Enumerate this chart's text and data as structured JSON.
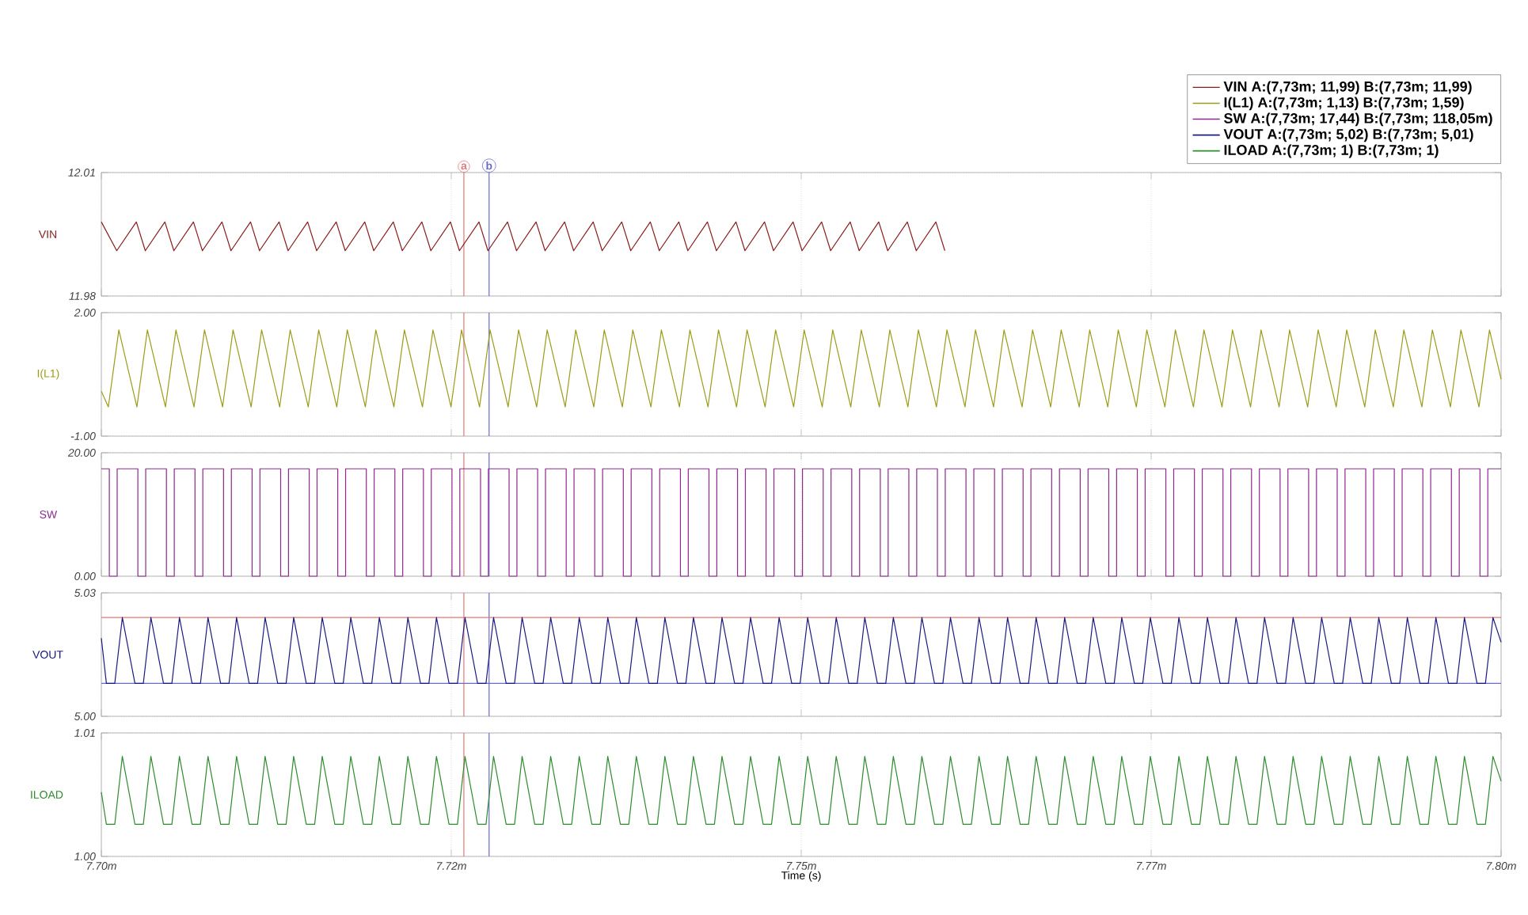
{
  "chart_data": [
    {
      "type": "line",
      "ylabel": "VIN",
      "legend": "top right",
      "grid": true,
      "tick_labels": "y",
      "xlim": [
        7.7,
        7.8
      ],
      "xticks": [
        7.7,
        7.725,
        7.75,
        7.775,
        7.8
      ],
      "ylim": [
        11.98,
        12.01
      ],
      "yticks": [
        11.98,
        12.01
      ],
      "ref_lines": [
        {
          "axis": "x",
          "value": 7.7259,
          "label": "a",
          "color": "#e07878"
        },
        {
          "axis": "x",
          "value": 7.7277,
          "label": "b",
          "color": "#6a6ad0"
        }
      ],
      "x": [
        7.7,
        7.7011,
        7.7025,
        7.70314,
        7.70454,
        7.70518,
        7.70658,
        7.70722,
        7.70862,
        7.70926,
        7.71066,
        7.7113,
        7.7127,
        7.71334,
        7.71474,
        7.71538,
        7.71678,
        7.71742,
        7.71882,
        7.71946,
        7.72086,
        7.7215,
        7.7229,
        7.72354,
        7.72494,
        7.72558,
        7.72698,
        7.72762,
        7.72902,
        7.72966,
        7.73106,
        7.7317,
        7.7331,
        7.73374,
        7.73514,
        7.73578,
        7.73718,
        7.73782,
        7.73922,
        7.73986,
        7.74126,
        7.7419,
        7.7433,
        7.74394,
        7.74534,
        7.74598,
        7.74738,
        7.74802,
        7.74942,
        7.75006,
        7.75146,
        7.7521,
        7.7535,
        7.75414,
        7.75554,
        7.75618,
        7.75758,
        7.75822,
        7.75962,
        7.76026
      ],
      "series": [
        {
          "name": "VIN   A:(7,73m; 11,99) B:(7,73m; 11,99)",
          "color": "#8b1c1c",
          "values": [
            11.998,
            11.991,
            11.998,
            11.991,
            11.998,
            11.991,
            11.998,
            11.991,
            11.998,
            11.991,
            11.998,
            11.991,
            11.998,
            11.991,
            11.998,
            11.991,
            11.998,
            11.991,
            11.998,
            11.991,
            11.998,
            11.991,
            11.998,
            11.991,
            11.998,
            11.991,
            11.998,
            11.991,
            11.998,
            11.991,
            11.998,
            11.991,
            11.998,
            11.991,
            11.998,
            11.991,
            11.998,
            11.991,
            11.998,
            11.991,
            11.998,
            11.991,
            11.998,
            11.991,
            11.998,
            11.991,
            11.998,
            11.991,
            11.998,
            11.991,
            11.998,
            11.991,
            11.998,
            11.991,
            11.998,
            11.991,
            11.998,
            11.991,
            11.998,
            11.991
          ]
        }
      ]
    },
    {
      "type": "line",
      "ylabel": "I(L1)",
      "grid": true,
      "tick_labels": "y",
      "xlim": [
        7.7,
        7.8
      ],
      "xticks": [
        7.7,
        7.725,
        7.75,
        7.775,
        7.8
      ],
      "ylim": [
        -1,
        2
      ],
      "yticks": [
        {
          "value": -1,
          "label": "-1.00"
        },
        {
          "value": 2,
          "label": "2.00"
        }
      ],
      "ref_lines": [
        {
          "axis": "x",
          "value": 7.7259,
          "color": "#e07878"
        },
        {
          "axis": "x",
          "value": 7.7277,
          "color": "#6a6ad0"
        }
      ],
      "x": [
        7.7,
        7.7005,
        7.70125,
        7.70254,
        7.70329,
        7.70458,
        7.70533,
        7.70662,
        7.70737,
        7.70866,
        7.70941,
        7.7107,
        7.71145,
        7.71274,
        7.71349,
        7.71478,
        7.71553,
        7.71682,
        7.71757,
        7.71886,
        7.71961,
        7.7209,
        7.72165,
        7.72294,
        7.72369,
        7.72498,
        7.72573,
        7.72702,
        7.72777,
        7.72906,
        7.72981,
        7.7311,
        7.73185,
        7.73314,
        7.73389,
        7.73518,
        7.73593,
        7.73722,
        7.73797,
        7.73926,
        7.74001,
        7.7413,
        7.74205,
        7.74334,
        7.74409,
        7.74538,
        7.74613,
        7.74742,
        7.74817,
        7.74946,
        7.75021,
        7.7515,
        7.75225,
        7.75354,
        7.75429,
        7.75558,
        7.75633,
        7.75762,
        7.75837,
        7.75966,
        7.76041,
        7.7617,
        7.76245,
        7.76374,
        7.76449,
        7.76578,
        7.76653,
        7.76782,
        7.76857,
        7.76986,
        7.77061,
        7.7719,
        7.77265,
        7.77394,
        7.77469,
        7.77598,
        7.77673,
        7.77802,
        7.77877,
        7.78006,
        7.78081,
        7.7821,
        7.78285,
        7.78414,
        7.78489,
        7.78618,
        7.78693,
        7.78822,
        7.78897,
        7.79026,
        7.79101,
        7.7923,
        7.79305,
        7.79434,
        7.79509,
        7.79638,
        7.79713,
        7.79842,
        7.79917,
        7.8
      ],
      "series": [
        {
          "name": "I(L1)   A:(7,73m; 1,13) B:(7,73m; 1,59)",
          "color": "#9c9c1a",
          "values": [
            0.09,
            -0.29,
            1.58,
            -0.29,
            1.58,
            -0.29,
            1.58,
            -0.29,
            1.58,
            -0.29,
            1.58,
            -0.29,
            1.58,
            -0.29,
            1.58,
            -0.29,
            1.58,
            -0.29,
            1.58,
            -0.29,
            1.58,
            -0.29,
            1.58,
            -0.29,
            1.58,
            -0.29,
            1.58,
            -0.29,
            1.58,
            -0.29,
            1.58,
            -0.29,
            1.58,
            -0.29,
            1.58,
            -0.29,
            1.58,
            -0.29,
            1.58,
            -0.29,
            1.58,
            -0.29,
            1.58,
            -0.29,
            1.58,
            -0.29,
            1.58,
            -0.29,
            1.58,
            -0.29,
            1.58,
            -0.29,
            1.58,
            -0.29,
            1.58,
            -0.29,
            1.58,
            -0.29,
            1.58,
            -0.29,
            1.58,
            -0.29,
            1.58,
            -0.29,
            1.58,
            -0.29,
            1.58,
            -0.29,
            1.58,
            -0.29,
            1.58,
            -0.29,
            1.58,
            -0.29,
            1.58,
            -0.29,
            1.58,
            -0.29,
            1.58,
            -0.29,
            1.58,
            -0.29,
            1.58,
            -0.29,
            1.58,
            -0.29,
            1.58,
            -0.29,
            1.58,
            -0.29,
            1.58,
            -0.29,
            1.58,
            -0.29,
            1.58,
            -0.29,
            1.58,
            -0.29,
            1.58,
            0.38
          ]
        }
      ]
    },
    {
      "type": "step",
      "ylabel": "SW",
      "grid": true,
      "tick_labels": "y",
      "xlim": [
        7.7,
        7.8
      ],
      "xticks": [
        7.7,
        7.725,
        7.75,
        7.775,
        7.8
      ],
      "ylim": [
        0,
        20
      ],
      "yticks": [
        {
          "value": 0,
          "label": "0.00"
        },
        {
          "value": 20,
          "label": "20.00"
        }
      ],
      "ref_lines": [
        {
          "axis": "x",
          "value": 7.7259,
          "color": "#e07878"
        },
        {
          "axis": "x",
          "value": 7.7277,
          "color": "#6a6ad0"
        }
      ],
      "x": [
        7.7,
        7.70057,
        7.70113,
        7.70261,
        7.70317,
        7.70465,
        7.70521,
        7.70669,
        7.70725,
        7.70873,
        7.70929,
        7.71077,
        7.71133,
        7.71281,
        7.71337,
        7.71485,
        7.71541,
        7.71689,
        7.71745,
        7.71893,
        7.71949,
        7.72097,
        7.72153,
        7.72301,
        7.72357,
        7.72505,
        7.72561,
        7.72709,
        7.72765,
        7.72913,
        7.72969,
        7.73117,
        7.73173,
        7.73321,
        7.73377,
        7.73525,
        7.73581,
        7.73729,
        7.73785,
        7.73933,
        7.73989,
        7.74137,
        7.74193,
        7.74341,
        7.74397,
        7.74545,
        7.74601,
        7.74749,
        7.74805,
        7.74953,
        7.75009,
        7.75157,
        7.75213,
        7.75361,
        7.75417,
        7.75565,
        7.75621,
        7.75769,
        7.75825,
        7.75973,
        7.76029,
        7.76177,
        7.76233,
        7.76381,
        7.76437,
        7.76585,
        7.76641,
        7.76789,
        7.76845,
        7.76993,
        7.77049,
        7.77197,
        7.77253,
        7.77401,
        7.77457,
        7.77605,
        7.77661,
        7.77809,
        7.77865,
        7.78013,
        7.78069,
        7.78217,
        7.78273,
        7.78421,
        7.78477,
        7.78625,
        7.78681,
        7.78829,
        7.78885,
        7.79033,
        7.79089,
        7.79237,
        7.79293,
        7.79441,
        7.79497,
        7.79645,
        7.79701,
        7.79849,
        7.79905,
        7.8
      ],
      "series": [
        {
          "name": "SW   A:(7,73m; 17,44) B:(7,73m; 118,05m)",
          "color": "#8e2a8e",
          "values": [
            17.4,
            0,
            17.4,
            0,
            17.4,
            0,
            17.4,
            0,
            17.4,
            0,
            17.4,
            0,
            17.4,
            0,
            17.4,
            0,
            17.4,
            0,
            17.4,
            0,
            17.4,
            0,
            17.4,
            0,
            17.4,
            0,
            17.4,
            0,
            17.4,
            0,
            17.4,
            0,
            17.4,
            0,
            17.4,
            0,
            17.4,
            0,
            17.4,
            0,
            17.4,
            0,
            17.4,
            0,
            17.4,
            0,
            17.4,
            0,
            17.4,
            0,
            17.4,
            0,
            17.4,
            0,
            17.4,
            0,
            17.4,
            0,
            17.4,
            0,
            17.4,
            0,
            17.4,
            0,
            17.4,
            0,
            17.4,
            0,
            17.4,
            0,
            17.4,
            0,
            17.4,
            0,
            17.4,
            0,
            17.4,
            0,
            17.4,
            0,
            17.4,
            0,
            17.4,
            0,
            17.4,
            0,
            17.4,
            0,
            17.4,
            0,
            17.4,
            0,
            17.4,
            0,
            17.4,
            0,
            17.4,
            0,
            17.4,
            17.4
          ]
        }
      ]
    },
    {
      "type": "line",
      "ylabel": "VOUT",
      "grid": true,
      "tick_labels": "y",
      "xlim": [
        7.7,
        7.8
      ],
      "xticks": [
        7.7,
        7.725,
        7.75,
        7.775,
        7.8
      ],
      "ylim": [
        5,
        5.03
      ],
      "yticks": [
        {
          "value": 5,
          "label": "5.00"
        },
        5.03
      ],
      "ref_lines": [
        {
          "axis": "x",
          "value": 7.7259,
          "color": "#e07878"
        },
        {
          "axis": "x",
          "value": 7.7277,
          "color": "#6a6ad0"
        },
        {
          "axis": "y",
          "value": 5.024,
          "color": "#e07878"
        },
        {
          "axis": "y",
          "value": 5.008,
          "color": "#6a6ad0"
        }
      ],
      "x": [
        7.7,
        7.70036,
        7.70096,
        7.7015,
        7.7024,
        7.703,
        7.70354,
        7.70444,
        7.70504,
        7.70558,
        7.70648,
        7.70708,
        7.70762,
        7.70852,
        7.70912,
        7.70966,
        7.71056,
        7.71116,
        7.7117,
        7.7126,
        7.7132,
        7.71374,
        7.71464,
        7.71524,
        7.71578,
        7.71668,
        7.71728,
        7.71782,
        7.71872,
        7.71932,
        7.71986,
        7.72076,
        7.72136,
        7.7219,
        7.7228,
        7.7234,
        7.72394,
        7.72484,
        7.72544,
        7.72598,
        7.72688,
        7.72748,
        7.72802,
        7.72892,
        7.72952,
        7.73006,
        7.73096,
        7.73156,
        7.7321,
        7.733,
        7.7336,
        7.73414,
        7.73504,
        7.73564,
        7.73618,
        7.73708,
        7.73768,
        7.73822,
        7.73912,
        7.73972,
        7.74026,
        7.74116,
        7.74176,
        7.7423,
        7.7432,
        7.7438,
        7.74434,
        7.74524,
        7.74584,
        7.74638,
        7.74728,
        7.74788,
        7.74842,
        7.74932,
        7.74992,
        7.75046,
        7.75136,
        7.75196,
        7.7525,
        7.7534,
        7.754,
        7.75454,
        7.75544,
        7.75604,
        7.75658,
        7.75748,
        7.75808,
        7.75862,
        7.75952,
        7.76012,
        7.76066,
        7.76156,
        7.76216,
        7.7627,
        7.7636,
        7.7642,
        7.76474,
        7.76564,
        7.76624,
        7.76678,
        7.76768,
        7.76828,
        7.76882,
        7.76972,
        7.77032,
        7.77086,
        7.77176,
        7.77236,
        7.7729,
        7.7738,
        7.7744,
        7.77494,
        7.77584,
        7.77644,
        7.77698,
        7.77788,
        7.77848,
        7.77902,
        7.77992,
        7.78052,
        7.78106,
        7.78196,
        7.78256,
        7.7831,
        7.784,
        7.7846,
        7.78514,
        7.78604,
        7.78664,
        7.78718,
        7.78808,
        7.78868,
        7.78922,
        7.79012,
        7.79072,
        7.79126,
        7.79216,
        7.79276,
        7.7933,
        7.7942,
        7.7948,
        7.79534,
        7.79624,
        7.79684,
        7.79738,
        7.79828,
        7.79888,
        7.79942,
        7.8
      ],
      "series": [
        {
          "name": "VOUT   A:(7,73m; 5,02) B:(7,73m; 5,01)",
          "color": "#1c1c80",
          "values": [
            5.019,
            5.008,
            5.008,
            5.024,
            5.008,
            5.008,
            5.024,
            5.008,
            5.008,
            5.024,
            5.008,
            5.008,
            5.024,
            5.008,
            5.008,
            5.024,
            5.008,
            5.008,
            5.024,
            5.008,
            5.008,
            5.024,
            5.008,
            5.008,
            5.024,
            5.008,
            5.008,
            5.024,
            5.008,
            5.008,
            5.024,
            5.008,
            5.008,
            5.024,
            5.008,
            5.008,
            5.024,
            5.008,
            5.008,
            5.024,
            5.008,
            5.008,
            5.024,
            5.008,
            5.008,
            5.024,
            5.008,
            5.008,
            5.024,
            5.008,
            5.008,
            5.024,
            5.008,
            5.008,
            5.024,
            5.008,
            5.008,
            5.024,
            5.008,
            5.008,
            5.024,
            5.008,
            5.008,
            5.024,
            5.008,
            5.008,
            5.024,
            5.008,
            5.008,
            5.024,
            5.008,
            5.008,
            5.024,
            5.008,
            5.008,
            5.024,
            5.008,
            5.008,
            5.024,
            5.008,
            5.008,
            5.024,
            5.008,
            5.008,
            5.024,
            5.008,
            5.008,
            5.024,
            5.008,
            5.008,
            5.024,
            5.008,
            5.008,
            5.024,
            5.008,
            5.008,
            5.024,
            5.008,
            5.008,
            5.024,
            5.008,
            5.008,
            5.024,
            5.008,
            5.008,
            5.024,
            5.008,
            5.008,
            5.024,
            5.008,
            5.008,
            5.024,
            5.008,
            5.008,
            5.024,
            5.008,
            5.008,
            5.024,
            5.008,
            5.008,
            5.024,
            5.008,
            5.008,
            5.024,
            5.008,
            5.008,
            5.024,
            5.008,
            5.008,
            5.024,
            5.008,
            5.008,
            5.024,
            5.008,
            5.008,
            5.024,
            5.008,
            5.008,
            5.024,
            5.008,
            5.008,
            5.024,
            5.008,
            5.008,
            5.024,
            5.008,
            5.008,
            5.024,
            5.018
          ]
        }
      ]
    },
    {
      "type": "line",
      "ylabel": "ILOAD",
      "xlabel": "Time (s)",
      "grid": true,
      "xlim": [
        7.7,
        7.8
      ],
      "xticks": [
        {
          "value": 7.7,
          "label": "7.70m"
        },
        {
          "value": 7.725,
          "label": "7.72m"
        },
        {
          "value": 7.75,
          "label": "7.75m"
        },
        {
          "value": 7.775,
          "label": "7.77m"
        },
        {
          "value": 7.8,
          "label": "7.80m"
        }
      ],
      "ylim": [
        1,
        1.01
      ],
      "yticks": [
        {
          "value": 1,
          "label": "1.00"
        },
        1.01
      ],
      "ref_lines": [
        {
          "axis": "x",
          "value": 7.7259,
          "color": "#e07878"
        },
        {
          "axis": "x",
          "value": 7.7277,
          "color": "#6a6ad0"
        }
      ],
      "x": [
        7.7,
        7.70036,
        7.70096,
        7.7015,
        7.7024,
        7.703,
        7.70354,
        7.70444,
        7.70504,
        7.70558,
        7.70648,
        7.70708,
        7.70762,
        7.70852,
        7.70912,
        7.70966,
        7.71056,
        7.71116,
        7.7117,
        7.7126,
        7.7132,
        7.71374,
        7.71464,
        7.71524,
        7.71578,
        7.71668,
        7.71728,
        7.71782,
        7.71872,
        7.71932,
        7.71986,
        7.72076,
        7.72136,
        7.7219,
        7.7228,
        7.7234,
        7.72394,
        7.72484,
        7.72544,
        7.72598,
        7.72688,
        7.72748,
        7.72802,
        7.72892,
        7.72952,
        7.73006,
        7.73096,
        7.73156,
        7.7321,
        7.733,
        7.7336,
        7.73414,
        7.73504,
        7.73564,
        7.73618,
        7.73708,
        7.73768,
        7.73822,
        7.73912,
        7.73972,
        7.74026,
        7.74116,
        7.74176,
        7.7423,
        7.7432,
        7.7438,
        7.74434,
        7.74524,
        7.74584,
        7.74638,
        7.74728,
        7.74788,
        7.74842,
        7.74932,
        7.74992,
        7.75046,
        7.75136,
        7.75196,
        7.7525,
        7.7534,
        7.754,
        7.75454,
        7.75544,
        7.75604,
        7.75658,
        7.75748,
        7.75808,
        7.75862,
        7.75952,
        7.76012,
        7.76066,
        7.76156,
        7.76216,
        7.7627,
        7.7636,
        7.7642,
        7.76474,
        7.76564,
        7.76624,
        7.76678,
        7.76768,
        7.76828,
        7.76882,
        7.76972,
        7.77032,
        7.77086,
        7.77176,
        7.77236,
        7.7729,
        7.7738,
        7.7744,
        7.77494,
        7.77584,
        7.77644,
        7.77698,
        7.77788,
        7.77848,
        7.77902,
        7.77992,
        7.78052,
        7.78106,
        7.78196,
        7.78256,
        7.7831,
        7.784,
        7.7846,
        7.78514,
        7.78604,
        7.78664,
        7.78718,
        7.78808,
        7.78868,
        7.78922,
        7.79012,
        7.79072,
        7.79126,
        7.79216,
        7.79276,
        7.7933,
        7.7942,
        7.7948,
        7.79534,
        7.79624,
        7.79684,
        7.79738,
        7.79828,
        7.79888,
        7.79942,
        7.8
      ],
      "series": [
        {
          "name": "ILOAD   A:(7,73m; 1) B:(7,73m; 1)",
          "color": "#2e8b2e",
          "values": [
            1.0052,
            1.0026,
            1.0026,
            1.0081,
            1.0026,
            1.0026,
            1.0081,
            1.0026,
            1.0026,
            1.0081,
            1.0026,
            1.0026,
            1.0081,
            1.0026,
            1.0026,
            1.0081,
            1.0026,
            1.0026,
            1.0081,
            1.0026,
            1.0026,
            1.0081,
            1.0026,
            1.0026,
            1.0081,
            1.0026,
            1.0026,
            1.0081,
            1.0026,
            1.0026,
            1.0081,
            1.0026,
            1.0026,
            1.0081,
            1.0026,
            1.0026,
            1.0081,
            1.0026,
            1.0026,
            1.0081,
            1.0026,
            1.0026,
            1.0081,
            1.0026,
            1.0026,
            1.0081,
            1.0026,
            1.0026,
            1.0081,
            1.0026,
            1.0026,
            1.0081,
            1.0026,
            1.0026,
            1.0081,
            1.0026,
            1.0026,
            1.0081,
            1.0026,
            1.0026,
            1.0081,
            1.0026,
            1.0026,
            1.0081,
            1.0026,
            1.0026,
            1.0081,
            1.0026,
            1.0026,
            1.0081,
            1.0026,
            1.0026,
            1.0081,
            1.0026,
            1.0026,
            1.0081,
            1.0026,
            1.0026,
            1.0081,
            1.0026,
            1.0026,
            1.0081,
            1.0026,
            1.0026,
            1.0081,
            1.0026,
            1.0026,
            1.0081,
            1.0026,
            1.0026,
            1.0081,
            1.0026,
            1.0026,
            1.0081,
            1.0026,
            1.0026,
            1.0081,
            1.0026,
            1.0026,
            1.0081,
            1.0026,
            1.0026,
            1.0081,
            1.0026,
            1.0026,
            1.0081,
            1.0026,
            1.0026,
            1.0081,
            1.0026,
            1.0026,
            1.0081,
            1.0026,
            1.0026,
            1.0081,
            1.0026,
            1.0026,
            1.0081,
            1.0026,
            1.0026,
            1.0081,
            1.0026,
            1.0026,
            1.0081,
            1.0026,
            1.0026,
            1.0081,
            1.0026,
            1.0026,
            1.0081,
            1.0026,
            1.0026,
            1.0081,
            1.0026,
            1.0026,
            1.0081,
            1.0026,
            1.0026,
            1.0081,
            1.0026,
            1.0026,
            1.0081,
            1.0026,
            1.0026,
            1.0081,
            1.0026,
            1.0026,
            1.0081,
            1.0061
          ]
        }
      ]
    }
  ]
}
